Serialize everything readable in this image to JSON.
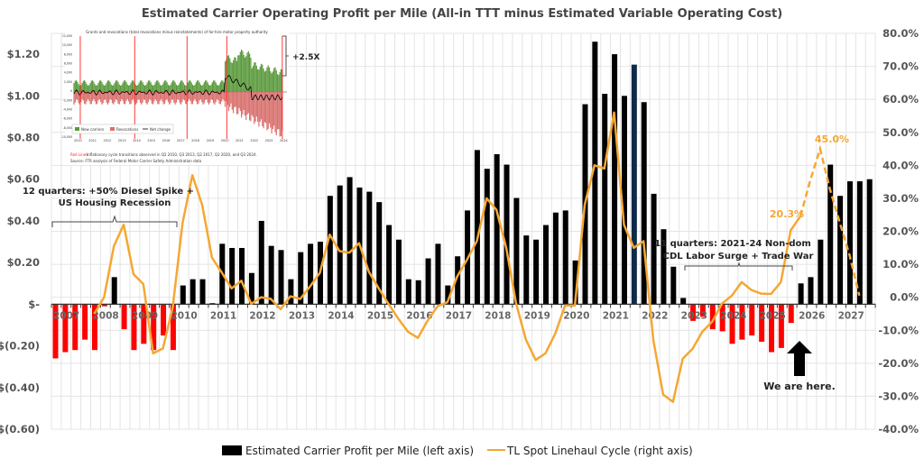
{
  "chart_data": {
    "type": "bar",
    "title": "Estimated Carrier Operating Profit per Mile (All-in TTT minus Estimated Variable Operating Cost)",
    "x_start": "2007 Q1",
    "x_end": "2027 Q4",
    "frequency": "quarterly",
    "x_tick_labels": [
      "2007",
      "2008",
      "2009",
      "2010",
      "2011",
      "2012",
      "2013",
      "2014",
      "2015",
      "2016",
      "2017",
      "2018",
      "2019",
      "2020",
      "2021",
      "2022",
      "2023",
      "2024",
      "2025",
      "2026",
      "2027"
    ],
    "left_axis": {
      "label": "Estimated Carrier Profit per Mile",
      "range": [
        -0.6,
        1.3
      ],
      "ticks": [
        1.2,
        1.0,
        0.8,
        0.6,
        0.4,
        0.2,
        0,
        -0.2,
        -0.4,
        -0.6
      ],
      "tick_labels": [
        "$1.20",
        "$1.00",
        "$0.80",
        "$0.60",
        "$0.40",
        "$0.20",
        "$-",
        "$(0.20)",
        "$(0.40)",
        "$(0.60)"
      ]
    },
    "right_axis": {
      "label": "TL Spot Linehaul Cycle",
      "range": [
        -40,
        80
      ],
      "ticks": [
        80,
        70,
        60,
        50,
        40,
        30,
        20,
        10,
        0,
        -10,
        -20,
        -30,
        -40
      ],
      "tick_labels": [
        "80.0%",
        "70.0%",
        "60.0%",
        "50.0%",
        "40.0%",
        "30.0%",
        "20.0%",
        "10.0%",
        "0.0%",
        "-10.0%",
        "-20.0%",
        "-30.0%",
        "-40.0%"
      ]
    },
    "grid": true,
    "legend_position": "bottom",
    "series": [
      {
        "name": "Estimated Carrier Profit per Mile (left axis)",
        "type": "bar",
        "color": "#000000",
        "negative_color": "#ff0000",
        "highlight_color": "#0d2a4a",
        "highlight_index": 59,
        "values": [
          -0.26,
          -0.23,
          -0.22,
          -0.17,
          -0.22,
          -0.01,
          0.13,
          -0.12,
          -0.22,
          -0.19,
          -0.22,
          -0.15,
          -0.22,
          0.09,
          0.12,
          0.12,
          0.005,
          0.29,
          0.27,
          0.27,
          0.15,
          0.4,
          0.28,
          0.26,
          0.12,
          0.25,
          0.29,
          0.3,
          0.52,
          0.57,
          0.61,
          0.56,
          0.54,
          0.49,
          0.38,
          0.31,
          0.12,
          0.115,
          0.22,
          0.29,
          0.09,
          0.23,
          0.45,
          0.74,
          0.65,
          0.72,
          0.67,
          0.51,
          0.33,
          0.31,
          0.38,
          0.44,
          0.45,
          0.21,
          0.96,
          1.26,
          1.01,
          1.2,
          1.0,
          1.15,
          0.97,
          0.53,
          0.36,
          0.18,
          0.03,
          -0.08,
          -0.06,
          -0.12,
          -0.13,
          -0.19,
          -0.17,
          -0.15,
          -0.18,
          -0.23,
          -0.21,
          -0.09,
          0.1,
          0.13,
          0.31,
          0.67,
          0.52,
          0.59,
          0.59,
          0.6
        ]
      },
      {
        "name": "TL Spot Linehaul Cycle (right axis)",
        "type": "line",
        "color": "#f5a733",
        "start_index": 4,
        "dashed_from_index": 76,
        "values": [
          -5,
          0,
          15.5,
          22,
          7,
          4,
          -17,
          -15.5,
          -3,
          22.5,
          37,
          28,
          12,
          7.5,
          2.7,
          5,
          -2,
          0,
          -0.5,
          -3.6,
          0.3,
          -0.5,
          3.3,
          7.4,
          19,
          14,
          13.5,
          16.4,
          7.7,
          2.7,
          -2,
          -6.5,
          -10.5,
          -12.3,
          -7,
          -2.7,
          -1.5,
          6.3,
          11.4,
          17,
          30,
          26.5,
          15,
          -1.8,
          -12.8,
          -19,
          -17,
          -11,
          -2.5,
          -2.5,
          28,
          40,
          39,
          56,
          22,
          15,
          17,
          -13,
          -29.5,
          -31.7,
          -18.6,
          -15.6,
          -10.4,
          -7.4,
          -1.9,
          0.5,
          4.6,
          2.2,
          1.1,
          1,
          4.6,
          20.3,
          24.6,
          35.5,
          45.0,
          32.8,
          22.7,
          12.8,
          0.5
        ]
      }
    ],
    "annotations": [
      {
        "id": "housing",
        "lines": [
          "12 quarters: +50% Diesel Spike +",
          "US Housing Recession"
        ],
        "span_quarters": "2007 Q1 - 2010 Q1"
      },
      {
        "id": "cdl",
        "lines": [
          "11 quarters: 2021-24 Non-dom",
          "CDL Labor Surge + Trade War"
        ],
        "span_quarters": "2023 Q2 - 2025 Q4"
      },
      {
        "id": "here",
        "text": "We are here."
      },
      {
        "id": "val1",
        "text": "20.3%"
      },
      {
        "id": "val2",
        "text": "45.0%"
      }
    ]
  },
  "inset": {
    "title": "Grants and revocations (total revocations minus reinstatements) of for-hire motor property authority",
    "y_ticks": [
      "12,000",
      "10,000",
      "8,000",
      "6,000",
      "4,000",
      "2,000",
      "0",
      "-2,000",
      "-4,000",
      "-6,000",
      "-8,000",
      "-10,000"
    ],
    "x_ticks": [
      "2010",
      "2011",
      "2012",
      "2013",
      "2014",
      "2015",
      "2016",
      "2017",
      "2018",
      "2019",
      "2020",
      "2021",
      "2022",
      "2023",
      "2024"
    ],
    "legend": [
      "New carriers",
      "Revocations",
      "Net change"
    ],
    "colors": {
      "new": "#5a9a3c",
      "revocations": "#d9706d",
      "net": "#000000",
      "red_lines": "#ff2222"
    },
    "note_label": "Red Lines:",
    "note": "Inflationary cycle transitions observed in Q2 2010, Q3 2013, Q2 2017, Q3 2020, and Q3 2024.",
    "source": "Source: FTR analysis of Federal Motor Carrier Safety Administration data",
    "multiplier_label": "+2.5X"
  },
  "legend": {
    "bar_label": "Estimated Carrier Profit per Mile (left axis)",
    "line_label": "TL Spot Linehaul Cycle (right axis)"
  }
}
